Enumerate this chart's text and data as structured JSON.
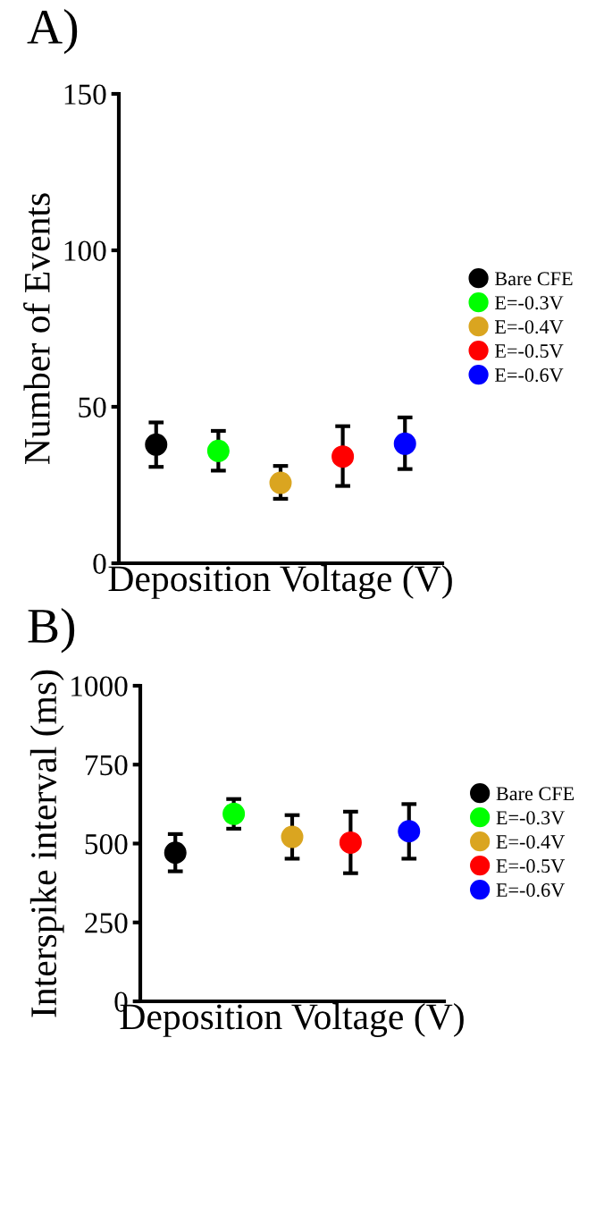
{
  "chart_data": [
    {
      "type": "scatter",
      "title": "A)",
      "xlabel": "Deposition Voltage (V)",
      "ylabel": "Number of Events",
      "categories": [
        null,
        null,
        null,
        null,
        null
      ],
      "ylim": [
        0,
        150
      ],
      "yticks": [
        0,
        50,
        100,
        150
      ],
      "grid": false,
      "legend": "right",
      "marker": "circle",
      "series": [
        {
          "name": "Bare CFE",
          "color": "#000000",
          "values": [
            37.9,
            null,
            null,
            null,
            null
          ],
          "errors": [
            [
              30.8,
              45.0
            ],
            null,
            null,
            null,
            null
          ]
        },
        {
          "name": "E=-0.3V",
          "color": "#00ff00",
          "values": [
            null,
            35.9,
            null,
            null,
            null
          ],
          "errors": [
            null,
            [
              29.6,
              42.3
            ],
            null,
            null,
            null
          ]
        },
        {
          "name": "E=-0.4V",
          "color": "#daa520",
          "values": [
            null,
            null,
            25.7,
            null,
            null
          ],
          "errors": [
            null,
            null,
            [
              20.6,
              31.1
            ],
            null,
            null
          ]
        },
        {
          "name": "E=-0.5V",
          "color": "#ff0000",
          "values": [
            null,
            null,
            null,
            34.1,
            null
          ],
          "errors": [
            null,
            null,
            null,
            [
              24.7,
              43.8
            ],
            null
          ]
        },
        {
          "name": "E=-0.6V",
          "color": "#0000ff",
          "values": [
            null,
            null,
            null,
            null,
            38.2
          ],
          "errors": [
            null,
            null,
            null,
            null,
            [
              30.1,
              46.6
            ]
          ]
        }
      ]
    },
    {
      "type": "scatter",
      "title": "B)",
      "xlabel": "Deposition Voltage (V)",
      "ylabel": "Interspike interval (ms)",
      "categories": [
        null,
        null,
        null,
        null,
        null
      ],
      "ylim": [
        0,
        1000
      ],
      "yticks": [
        0,
        250,
        500,
        750,
        1000
      ],
      "grid": false,
      "legend": "right",
      "marker": "circle",
      "series": [
        {
          "name": "Bare CFE",
          "color": "#000000",
          "values": [
            471,
            null,
            null,
            null,
            null
          ],
          "errors": [
            [
              412,
              530
            ],
            null,
            null,
            null,
            null
          ]
        },
        {
          "name": "E=-0.3V",
          "color": "#00ff00",
          "values": [
            null,
            594,
            null,
            null,
            null
          ],
          "errors": [
            null,
            [
              547,
              641
            ],
            null,
            null,
            null
          ]
        },
        {
          "name": "E=-0.4V",
          "color": "#daa520",
          "values": [
            null,
            null,
            521,
            null,
            null
          ],
          "errors": [
            null,
            null,
            [
              452,
              590
            ],
            null,
            null
          ]
        },
        {
          "name": "E=-0.5V",
          "color": "#ff0000",
          "values": [
            null,
            null,
            null,
            503,
            null
          ],
          "errors": [
            null,
            null,
            null,
            [
              406,
              601
            ],
            null
          ]
        },
        {
          "name": "E=-0.6V",
          "color": "#0000ff",
          "values": [
            null,
            null,
            null,
            null,
            539
          ],
          "errors": [
            null,
            null,
            null,
            null,
            [
              452,
              625
            ]
          ]
        }
      ]
    }
  ]
}
